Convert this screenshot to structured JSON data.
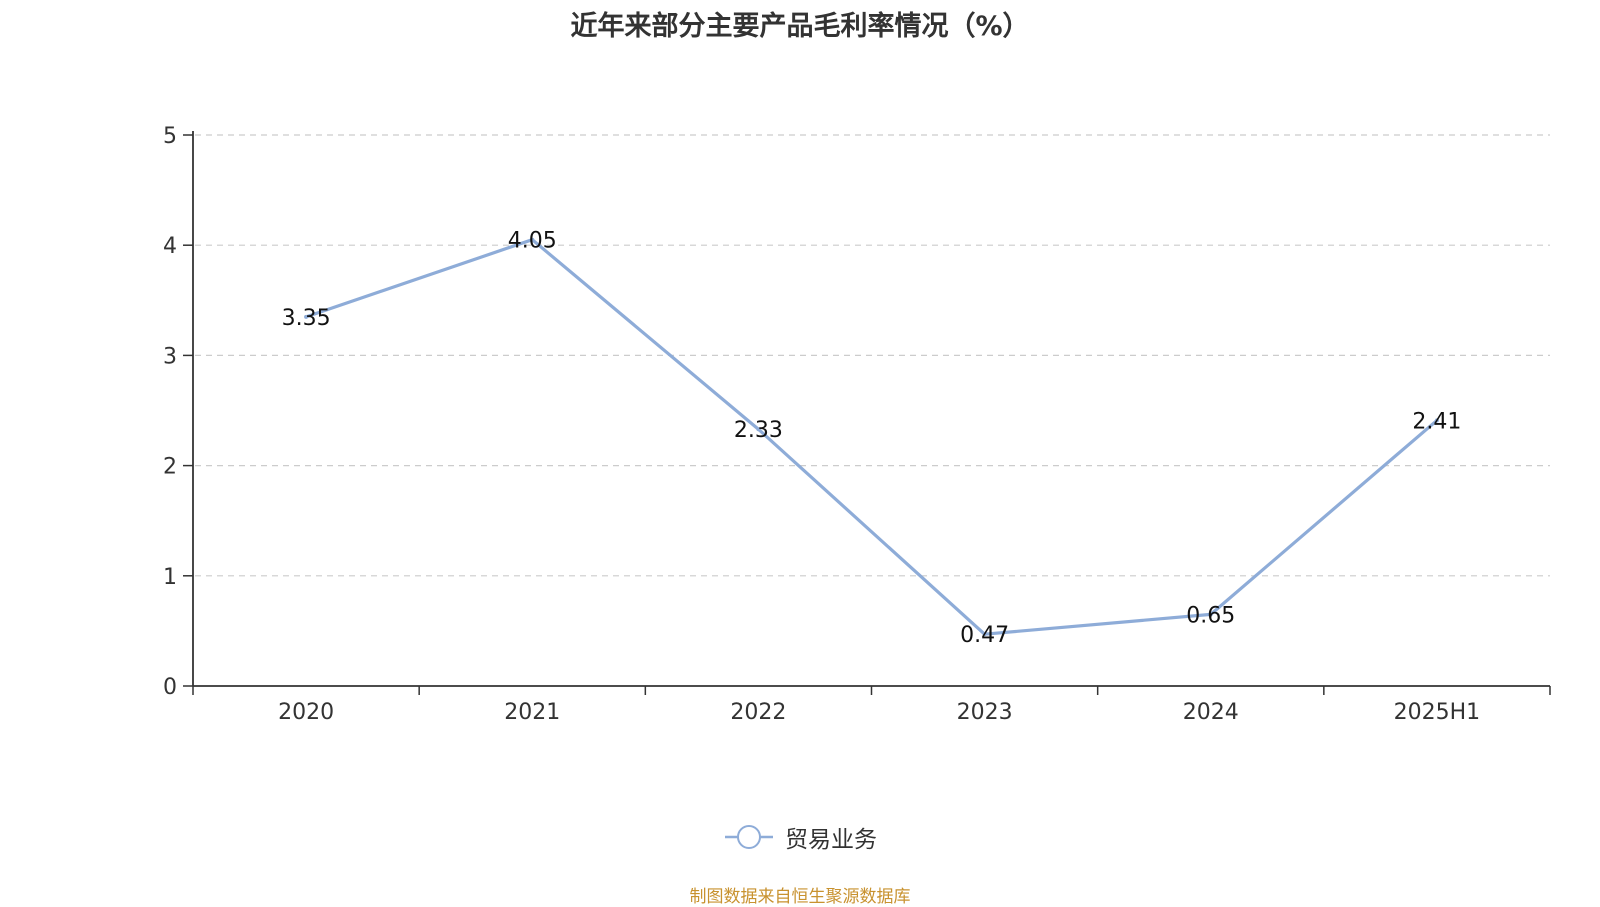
{
  "chart_data": {
    "type": "line",
    "title": "近年来部分主要产品毛利率情况（%）",
    "categories": [
      "2020",
      "2021",
      "2022",
      "2023",
      "2024",
      "2025H1"
    ],
    "series": [
      {
        "name": "贸易业务",
        "values": [
          3.35,
          4.05,
          2.33,
          0.47,
          0.65,
          2.41
        ],
        "labels": [
          "3.35",
          "4.05",
          "2.33",
          "0.47",
          "0.65",
          "2.41"
        ],
        "color": "#8eacd8"
      }
    ],
    "ylim": [
      0,
      5
    ],
    "yticks": [
      "0",
      "1",
      "2",
      "3",
      "4",
      "5"
    ],
    "grid": true,
    "legend_position": "bottom"
  },
  "source_note": "制图数据来自恒生聚源数据库",
  "colors": {
    "axis": "#333333",
    "grid": "#cccccc",
    "line": "#8eacd8",
    "source": "#c8922f"
  }
}
